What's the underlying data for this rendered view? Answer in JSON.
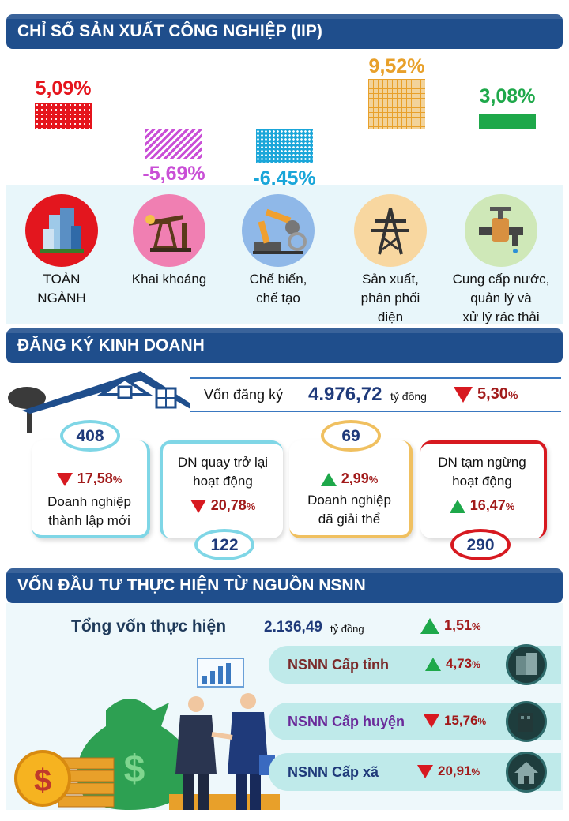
{
  "iip": {
    "title": "CHỈ SỐ SẢN XUẤT CÔNG NGHIỆP (IIP)",
    "bars": [
      {
        "value": "5,09%",
        "num": 5.09,
        "color": "#e5141c"
      },
      {
        "value": "-5,69%",
        "num": -5.69,
        "color": "#c94fd6"
      },
      {
        "value": "-6,45%",
        "num": -6.45,
        "color": "#1aa6d9"
      },
      {
        "value": "9,52%",
        "num": 9.52,
        "color": "#e8a02a"
      },
      {
        "value": "3,08%",
        "num": 3.08,
        "color": "#1ea84a"
      }
    ],
    "sectors": [
      {
        "label1": "TOÀN",
        "label2": "NGÀNH",
        "label3": "",
        "icon": "city-buildings-icon"
      },
      {
        "label1": "Khai khoáng",
        "label2": "",
        "label3": "",
        "icon": "oil-pump-icon"
      },
      {
        "label1": "Chế biến,",
        "label2": "chế tạo",
        "label3": "",
        "icon": "robot-arm-icon"
      },
      {
        "label1": "Sản xuất,",
        "label2": "phân phối",
        "label3": "điện",
        "icon": "power-tower-icon"
      },
      {
        "label1": "Cung cấp nước,",
        "label2": "quản lý và",
        "label3": "xử lý rác thải",
        "icon": "water-tap-icon"
      }
    ]
  },
  "business": {
    "title": "ĐĂNG KÝ KINH DOANH",
    "capital_label": "Vốn đăng ký",
    "capital_value": "4.976,72",
    "capital_unit": "tỷ đồng",
    "capital_change": "5,30",
    "percent": "%",
    "cards": [
      {
        "count": "408",
        "change": "17,58",
        "dir": "down",
        "line1": "Doanh nghiệp",
        "line2": "thành lập mới"
      },
      {
        "count": "122",
        "change": "20,78",
        "dir": "down",
        "line1": "DN quay trở lại",
        "line2": "hoạt động"
      },
      {
        "count": "69",
        "change": "2,99",
        "dir": "up",
        "line1": "Doanh nghiệp",
        "line2": "đã giải thể"
      },
      {
        "count": "290",
        "change": "16,47",
        "dir": "up",
        "line1": "DN tạm ngừng",
        "line2": "hoạt động"
      }
    ]
  },
  "investment": {
    "title": "VỐN ĐẦU TƯ THỰC HIỆN TỪ NGUỒN NSNN",
    "total_label": "Tổng vốn thực hiện",
    "total_value": "2.136,49",
    "total_unit": "tỷ đồng",
    "total_change": "1,51",
    "percent": "%",
    "rows": [
      {
        "label": "NSNN Cấp tỉnh",
        "change": "4,73",
        "dir": "up",
        "color": "#7a2a2a"
      },
      {
        "label": "NSNN Cấp huyện",
        "change": "15,76",
        "dir": "down",
        "color": "#6a2a9a"
      },
      {
        "label": "NSNN Cấp xã",
        "change": "20,91",
        "dir": "down",
        "color": "#1f3a7a"
      }
    ]
  }
}
